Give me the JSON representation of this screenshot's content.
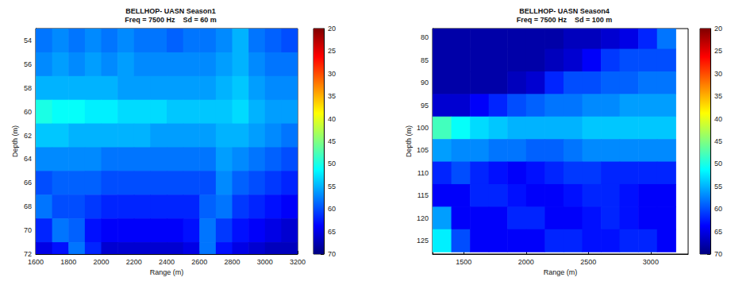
{
  "chart_data": [
    {
      "type": "heatmap",
      "title": "BELLHOP- UASN Season1",
      "subtitle": "Freq = 7500 Hz    Sd = 60 m",
      "x_label": "Range (m)",
      "y_label": "Depth (m)",
      "xlim": [
        1600,
        3200
      ],
      "xticks": [
        1600,
        1800,
        2000,
        2200,
        2400,
        2600,
        2800,
        3000,
        3200
      ],
      "ylim": [
        53,
        72
      ],
      "yticks": [
        54,
        56,
        58,
        60,
        62,
        64,
        66,
        68,
        70,
        72
      ],
      "grid": false,
      "x": [
        1650,
        1750,
        1850,
        1950,
        2050,
        2150,
        2250,
        2350,
        2450,
        2550,
        2650,
        2750,
        2850,
        2950,
        3050,
        3150
      ],
      "y": [
        54,
        56,
        58,
        60,
        62,
        64,
        66,
        68,
        70,
        72
      ],
      "values": [
        [
          58,
          57,
          58,
          57,
          58,
          57,
          58,
          58,
          59,
          58,
          58,
          57,
          55,
          58,
          59,
          60
        ],
        [
          57,
          56,
          57,
          56,
          57,
          56,
          57,
          57,
          57,
          57,
          57,
          56,
          55,
          57,
          58,
          58
        ],
        [
          55,
          55,
          55,
          55,
          55,
          56,
          56,
          56,
          56,
          56,
          56,
          55,
          54,
          56,
          57,
          57
        ],
        [
          50,
          51,
          51,
          52,
          52,
          53,
          53,
          53,
          54,
          54,
          54,
          54,
          53,
          55,
          56,
          56
        ],
        [
          54,
          54,
          55,
          55,
          55,
          55,
          55,
          56,
          56,
          56,
          56,
          55,
          55,
          56,
          57,
          58
        ],
        [
          57,
          57,
          57,
          57,
          58,
          58,
          58,
          58,
          58,
          58,
          58,
          56,
          57,
          58,
          59,
          60
        ],
        [
          60,
          59,
          59,
          59,
          60,
          60,
          60,
          60,
          60,
          60,
          60,
          57,
          59,
          60,
          61,
          62
        ],
        [
          58,
          60,
          60,
          61,
          62,
          62,
          62,
          62,
          62,
          62,
          59,
          58,
          61,
          62,
          63,
          64
        ],
        [
          62,
          58,
          59,
          63,
          64,
          64,
          64,
          64,
          64,
          63,
          58,
          61,
          63,
          64,
          65,
          66
        ],
        [
          65,
          63,
          58,
          62,
          66,
          66,
          66,
          66,
          66,
          65,
          58,
          63,
          65,
          66,
          67,
          67
        ]
      ],
      "colorbar": {
        "range": [
          20,
          70
        ],
        "ticks": [
          20,
          25,
          30,
          35,
          40,
          45,
          50,
          55,
          60,
          65,
          70
        ]
      }
    },
    {
      "type": "heatmap",
      "title": "BELLHOP- UASN Season4",
      "subtitle": "Freq = 7500 Hz    Sd = 100 m",
      "x_label": "Range (m)",
      "y_label": "Depth (m)",
      "xlim": [
        1250,
        3300
      ],
      "xticks": [
        1500,
        2000,
        2500,
        3000
      ],
      "ylim": [
        78,
        128
      ],
      "yticks": [
        80,
        85,
        90,
        95,
        100,
        105,
        110,
        115,
        120,
        125
      ],
      "grid": false,
      "x": [
        1325,
        1475,
        1625,
        1775,
        1925,
        2075,
        2225,
        2375,
        2525,
        2675,
        2825,
        2975,
        3125
      ],
      "y": [
        80,
        85,
        90,
        95,
        100,
        105,
        110,
        115,
        120,
        125
      ],
      "values": [
        [
          68,
          68,
          68,
          68,
          68,
          68,
          68,
          67,
          67,
          66,
          65,
          62,
          58
        ],
        [
          68,
          68,
          68,
          68,
          68,
          68,
          67,
          66,
          64,
          61,
          60,
          60,
          60
        ],
        [
          68,
          68,
          68,
          68,
          67,
          66,
          62,
          60,
          60,
          59,
          59,
          58,
          58
        ],
        [
          66,
          66,
          64,
          62,
          60,
          59,
          58,
          58,
          57,
          57,
          56,
          56,
          56
        ],
        [
          48,
          51,
          53,
          54,
          55,
          55,
          55,
          55,
          54,
          54,
          54,
          54,
          54
        ],
        [
          56,
          57,
          57,
          58,
          58,
          59,
          59,
          58,
          57,
          57,
          57,
          57,
          57
        ],
        [
          62,
          60,
          62,
          63,
          64,
          63,
          62,
          61,
          61,
          62,
          62,
          62,
          62
        ],
        [
          64,
          64,
          62,
          62,
          63,
          64,
          64,
          63,
          62,
          62,
          63,
          64,
          64
        ],
        [
          56,
          64,
          64,
          64,
          62,
          62,
          64,
          64,
          63,
          62,
          63,
          64,
          64
        ],
        [
          52,
          60,
          64,
          64,
          64,
          64,
          62,
          62,
          63,
          63,
          62,
          62,
          64
        ]
      ],
      "colorbar": {
        "range": [
          20,
          70
        ],
        "ticks": [
          20,
          25,
          30,
          35,
          40,
          45,
          50,
          55,
          60,
          65,
          70
        ]
      }
    }
  ]
}
